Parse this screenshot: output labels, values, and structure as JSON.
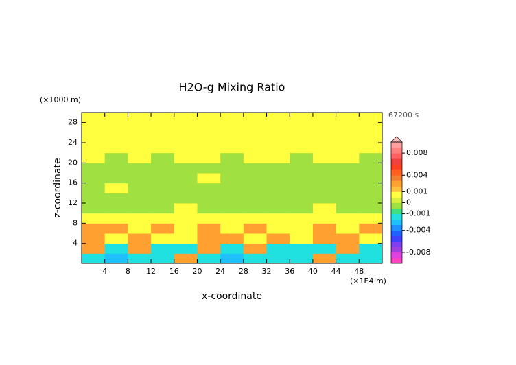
{
  "chart_data": {
    "type": "heatmap",
    "title": "H2O-g Mixing Ratio",
    "x_label": "x-coordinate",
    "y_label": "z-coordinate",
    "x_unit": "(×1E4 m)",
    "y_unit": "(×1000 m)",
    "time_label": "67200 s",
    "x_bins": [
      0,
      4,
      8,
      12,
      16,
      20,
      24,
      28,
      32,
      36,
      40,
      44,
      48,
      52
    ],
    "y_bins": [
      0,
      2,
      4,
      6,
      8,
      10,
      12,
      14,
      16,
      18,
      20,
      22,
      24,
      26,
      28,
      30
    ],
    "xlim": [
      0,
      52
    ],
    "ylim": [
      0,
      30
    ],
    "xticks": [
      4,
      8,
      12,
      16,
      20,
      24,
      28,
      32,
      36,
      40,
      44,
      48
    ],
    "yticks": [
      4,
      8,
      12,
      16,
      20,
      24,
      28
    ],
    "values": [
      [
        -0.0015,
        -0.0025,
        -0.0015,
        -0.0015,
        0.0025,
        -0.0015,
        -0.0025,
        -0.0015,
        -0.0015,
        -0.0015,
        0.0025,
        -0.0015,
        -0.0015
      ],
      [
        0.0025,
        -0.0015,
        0.0025,
        -0.0015,
        -0.0015,
        0.0025,
        -0.0015,
        0.0025,
        -0.0015,
        -0.0015,
        -0.0015,
        0.0025,
        -0.0015
      ],
      [
        0.0025,
        0.0007,
        0.0025,
        0.0007,
        0.0007,
        0.0025,
        0.0025,
        0.0007,
        0.0025,
        0.0007,
        0.0025,
        0.0025,
        0.0007
      ],
      [
        0.0025,
        0.0025,
        0.0007,
        0.0025,
        0.0007,
        0.0025,
        0.0007,
        0.0025,
        0.0007,
        0.0007,
        0.0025,
        0.0007,
        0.0025
      ],
      [
        0.0007,
        0.0007,
        0.0007,
        0.0007,
        0.0007,
        0.0007,
        0.0007,
        0.0007,
        0.0007,
        0.0007,
        0.0007,
        0.0007,
        0.0007
      ],
      [
        -0.0003,
        -0.0003,
        -0.0003,
        -0.0003,
        0.0007,
        -0.0003,
        -0.0003,
        -0.0003,
        -0.0003,
        -0.0003,
        0.0007,
        -0.0003,
        -0.0003
      ],
      [
        -0.0003,
        -0.0003,
        -0.0003,
        -0.0003,
        -0.0003,
        -0.0003,
        -0.0003,
        -0.0003,
        -0.0003,
        -0.0003,
        -0.0003,
        -0.0003,
        -0.0003
      ],
      [
        -0.0003,
        0.0007,
        -0.0003,
        -0.0003,
        -0.0003,
        -0.0003,
        -0.0003,
        -0.0003,
        -0.0003,
        -0.0003,
        -0.0003,
        -0.0003,
        -0.0003
      ],
      [
        -0.0003,
        -0.0003,
        -0.0003,
        -0.0003,
        -0.0003,
        0.0007,
        -0.0003,
        -0.0003,
        -0.0003,
        -0.0003,
        -0.0003,
        -0.0003,
        -0.0003
      ],
      [
        -0.0003,
        -0.0003,
        -0.0003,
        -0.0003,
        -0.0003,
        -0.0003,
        -0.0003,
        -0.0003,
        -0.0003,
        -0.0003,
        -0.0003,
        -0.0003,
        -0.0003
      ],
      [
        0.0007,
        -0.0003,
        0.0007,
        -0.0003,
        0.0007,
        0.0007,
        -0.0003,
        0.0007,
        0.0007,
        -0.0003,
        0.0007,
        0.0007,
        -0.0003
      ],
      [
        0.0007,
        0.0007,
        0.0007,
        0.0007,
        0.0007,
        0.0007,
        0.0007,
        0.0007,
        0.0007,
        0.0007,
        0.0007,
        0.0007,
        0.0007
      ],
      [
        0.0007,
        0.0007,
        0.0007,
        0.0007,
        0.0007,
        0.0007,
        0.0007,
        0.0007,
        0.0007,
        0.0007,
        0.0007,
        0.0007,
        0.0007
      ],
      [
        0.0007,
        0.0007,
        0.0007,
        0.0007,
        0.0007,
        0.0007,
        0.0007,
        0.0007,
        0.0007,
        0.0007,
        0.0007,
        0.0007,
        0.0007
      ],
      [
        0.0007,
        0.0007,
        0.0007,
        0.0007,
        0.0007,
        0.0007,
        0.0007,
        0.0007,
        0.0007,
        0.0007,
        0.0007,
        0.0007,
        0.0007
      ]
    ],
    "colorbar": {
      "levels": [
        -0.01,
        -0.009,
        -0.008,
        -0.007,
        -0.006,
        -0.005,
        -0.004,
        -0.003,
        -0.002,
        -0.001,
        -0.0005,
        0,
        0.0005,
        0.001,
        0.002,
        0.003,
        0.004,
        0.005,
        0.006,
        0.007,
        0.008,
        0.009,
        0.01
      ],
      "colors": [
        "#ff40c0",
        "#e040e0",
        "#a040e0",
        "#8040f0",
        "#4040ff",
        "#2060ff",
        "#2090ff",
        "#20c0ff",
        "#20e0e0",
        "#40e080",
        "#a0e040",
        "#d8f040",
        "#ffff40",
        "#ffc040",
        "#ffa030",
        "#f08030",
        "#ff6020",
        "#ff4020",
        "#f04040",
        "#ff6060",
        "#ff8080",
        "#ffa0a0"
      ],
      "over_color": "#ffc0c0",
      "ticks": [
        0.008,
        0.004,
        0.001,
        0,
        -0.001,
        -0.004,
        -0.008
      ]
    }
  }
}
